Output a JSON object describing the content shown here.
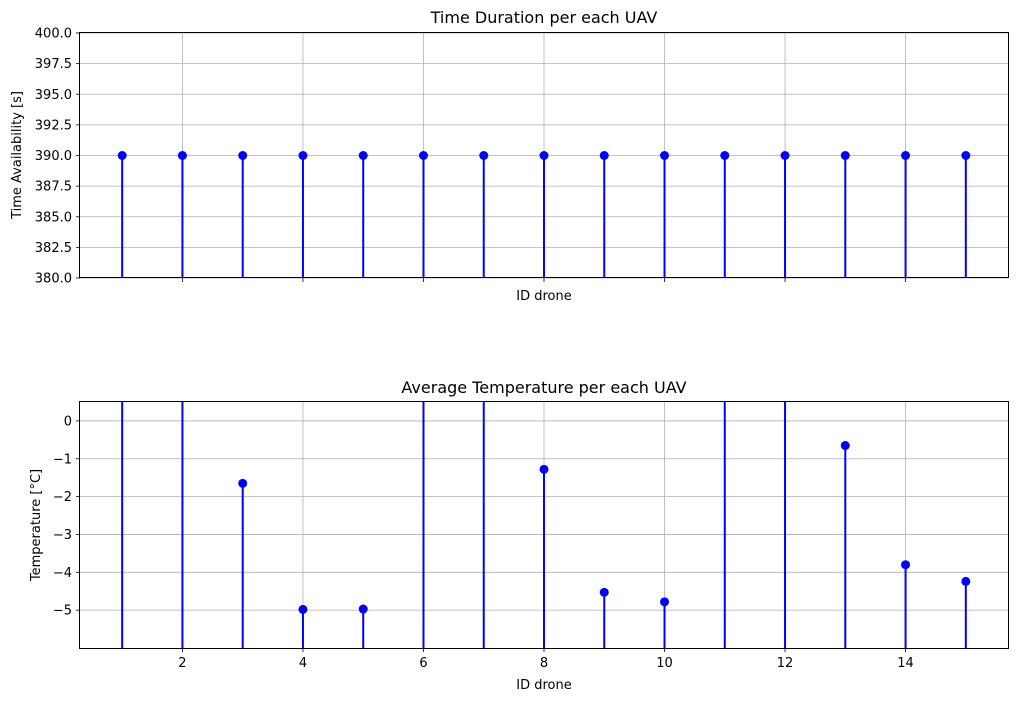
{
  "chart_data": [
    {
      "type": "stem",
      "title": "Time Duration per each UAV",
      "xlabel": "ID drone",
      "ylabel": "Time Availability [s]",
      "xlim": [
        0.3,
        15.7
      ],
      "ylim": [
        380.0,
        400.0
      ],
      "xticks": [
        2,
        4,
        6,
        8,
        10,
        12,
        14
      ],
      "xtick_labels_shown": false,
      "yticks": [
        "380.0",
        "382.5",
        "385.0",
        "387.5",
        "390.0",
        "392.5",
        "395.0",
        "397.5",
        "400.0"
      ],
      "grid": true,
      "color": "#0000ff",
      "x": [
        1,
        2,
        3,
        4,
        5,
        6,
        7,
        8,
        9,
        10,
        11,
        12,
        13,
        14,
        15
      ],
      "y": [
        390,
        390,
        390,
        390,
        390,
        390,
        390,
        390,
        390,
        390,
        390,
        390,
        390,
        390,
        390
      ]
    },
    {
      "type": "stem",
      "title": "Average Temperature per each UAV",
      "xlabel": "ID drone",
      "ylabel": "Temperature [°C]",
      "xlim": [
        0.3,
        15.7
      ],
      "ylim": [
        -6.0,
        0.5
      ],
      "xticks": [
        "2",
        "4",
        "6",
        "8",
        "10",
        "12",
        "14"
      ],
      "xtick_labels_shown": true,
      "yticks": [
        "−5",
        "−4",
        "−3",
        "−2",
        "−1",
        "0"
      ],
      "grid": true,
      "color": "#0000ff",
      "x": [
        1,
        2,
        3,
        4,
        5,
        6,
        7,
        8,
        9,
        10,
        11,
        12,
        13,
        14,
        15
      ],
      "y": [
        0.8,
        0.8,
        -1.65,
        -4.98,
        -4.97,
        0.8,
        0.8,
        -1.28,
        -4.53,
        -4.78,
        0.8,
        0.8,
        -0.65,
        -3.8,
        -4.24
      ]
    }
  ]
}
